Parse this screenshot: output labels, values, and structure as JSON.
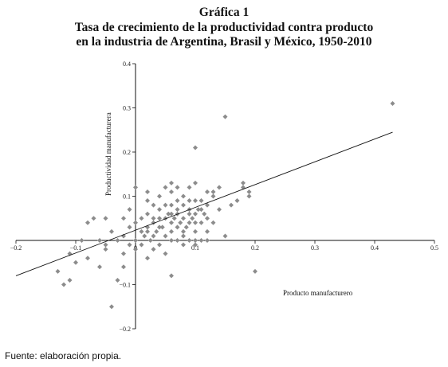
{
  "chart_data": {
    "type": "scatter",
    "title_lines": [
      "Gráfica 1",
      "Tasa de crecimiento de la productividad contra producto",
      "en la industria de Argentina, Brasil y México, 1950-2010"
    ],
    "xlabel": "Producto manufacturero",
    "ylabel": "Productividad manufacturera",
    "xlim": [
      -0.2,
      0.5
    ],
    "ylim": [
      -0.2,
      0.4
    ],
    "x_ticks": [
      -0.2,
      -0.1,
      0,
      0.1,
      0.2,
      0.3,
      0.4,
      0.5
    ],
    "y_ticks": [
      -0.2,
      -0.1,
      0,
      0.1,
      0.2,
      0.3,
      0.4
    ],
    "x_tick_labels": [
      "−0.2",
      "−0.1",
      "0",
      "0.1",
      "0.2",
      "0.3",
      "0.4",
      "0.5"
    ],
    "y_tick_labels": [
      "−0.2",
      "−0.1",
      "0",
      "0.1",
      "0.2",
      "0.3",
      "0.4"
    ],
    "grid": false,
    "marker": "diamond",
    "marker_color": "#8c8c8c",
    "trendline": {
      "x": [
        -0.2,
        0.43
      ],
      "y": [
        -0.08,
        0.245
      ]
    },
    "points": [
      [
        0.43,
        0.31
      ],
      [
        0.15,
        0.28
      ],
      [
        0.1,
        0.21
      ],
      [
        0.2,
        -0.07
      ],
      [
        -0.04,
        -0.15
      ],
      [
        -0.11,
        -0.09
      ],
      [
        -0.12,
        -0.1
      ],
      [
        -0.13,
        -0.07
      ],
      [
        -0.1,
        -0.05
      ],
      [
        -0.08,
        -0.04
      ],
      [
        -0.06,
        -0.06
      ],
      [
        -0.05,
        -0.02
      ],
      [
        -0.02,
        -0.06
      ],
      [
        -0.03,
        -0.09
      ],
      [
        0.06,
        -0.08
      ],
      [
        -0.02,
        -0.03
      ],
      [
        -0.01,
        -0.01
      ],
      [
        0.0,
        -0.02
      ],
      [
        -0.09,
        0.0
      ],
      [
        -0.08,
        0.04
      ],
      [
        -0.07,
        0.05
      ],
      [
        -0.05,
        0.05
      ],
      [
        -0.04,
        0.02
      ],
      [
        -0.03,
        0.0
      ],
      [
        -0.02,
        0.01
      ],
      [
        -0.01,
        0.03
      ],
      [
        -0.02,
        0.05
      ],
      [
        -0.11,
        -0.03
      ],
      [
        -0.06,
        0.0
      ],
      [
        -0.05,
        -0.01
      ],
      [
        0.0,
        0.0
      ],
      [
        0.01,
        0.02
      ],
      [
        0.01,
        -0.01
      ],
      [
        0.02,
        0.03
      ],
      [
        0.02,
        0.06
      ],
      [
        0.02,
        0.09
      ],
      [
        0.03,
        0.05
      ],
      [
        0.03,
        0.01
      ],
      [
        0.03,
        -0.02
      ],
      [
        0.04,
        0.07
      ],
      [
        0.04,
        0.1
      ],
      [
        0.04,
        0.03
      ],
      [
        0.05,
        0.05
      ],
      [
        0.05,
        0.12
      ],
      [
        0.05,
        0.01
      ],
      [
        0.05,
        -0.03
      ],
      [
        0.06,
        0.04
      ],
      [
        0.06,
        0.08
      ],
      [
        0.06,
        0.11
      ],
      [
        0.06,
        0.02
      ],
      [
        0.07,
        0.06
      ],
      [
        0.07,
        0.09
      ],
      [
        0.07,
        0.03
      ],
      [
        0.07,
        0.0
      ],
      [
        0.08,
        0.05
      ],
      [
        0.08,
        0.1
      ],
      [
        0.08,
        -0.01
      ],
      [
        0.08,
        0.02
      ],
      [
        0.09,
        0.07
      ],
      [
        0.09,
        0.04
      ],
      [
        0.09,
        0.12
      ],
      [
        0.09,
        0.0
      ],
      [
        0.1,
        0.06
      ],
      [
        0.1,
        0.09
      ],
      [
        0.1,
        0.02
      ],
      [
        0.1,
        0.13
      ],
      [
        0.1,
        -0.01
      ],
      [
        0.11,
        0.07
      ],
      [
        0.11,
        0.04
      ],
      [
        0.11,
        0.0
      ],
      [
        0.12,
        0.08
      ],
      [
        0.12,
        0.05
      ],
      [
        0.12,
        0.02
      ],
      [
        0.13,
        0.1
      ],
      [
        0.13,
        0.11
      ],
      [
        0.14,
        0.07
      ],
      [
        0.14,
        0.12
      ],
      [
        0.15,
        0.01
      ],
      [
        0.16,
        0.08
      ],
      [
        0.17,
        0.09
      ],
      [
        0.18,
        0.13
      ],
      [
        0.18,
        0.12
      ],
      [
        0.19,
        0.1
      ],
      [
        0.19,
        0.11
      ],
      [
        0.13,
        0.04
      ],
      [
        0.12,
        0.11
      ],
      [
        0.0,
        0.12
      ],
      [
        0.01,
        0.05
      ],
      [
        0.02,
        -0.04
      ],
      [
        0.03,
        0.08
      ],
      [
        0.04,
        -0.01
      ],
      [
        0.06,
        0.13
      ],
      [
        0.07,
        0.12
      ],
      [
        0.08,
        0.08
      ],
      [
        0.09,
        0.09
      ],
      [
        0.1,
        0.04
      ],
      [
        0.11,
        0.09
      ],
      [
        0.12,
        0.0
      ],
      [
        0.1,
        0.0
      ],
      [
        0.09,
        0.06
      ],
      [
        0.08,
        0.01
      ],
      [
        0.07,
        0.07
      ],
      [
        0.06,
        0.0
      ],
      [
        0.05,
        0.08
      ],
      [
        0.04,
        0.05
      ],
      [
        0.03,
        0.04
      ],
      [
        0.02,
        0.02
      ],
      [
        0.015,
        0.01
      ],
      [
        0.025,
        0.0
      ],
      [
        0.035,
        0.02
      ],
      [
        0.045,
        0.03
      ],
      [
        0.055,
        0.06
      ],
      [
        0.065,
        0.05
      ],
      [
        0.075,
        0.04
      ],
      [
        0.085,
        0.03
      ],
      [
        0.095,
        0.05
      ],
      [
        0.105,
        0.07
      ],
      [
        0.115,
        0.06
      ],
      [
        0.0,
        0.04
      ],
      [
        -0.01,
        0.07
      ],
      [
        0.02,
        0.11
      ],
      [
        0.06,
        0.06
      ]
    ]
  },
  "source": "Fuente: elaboración propia."
}
